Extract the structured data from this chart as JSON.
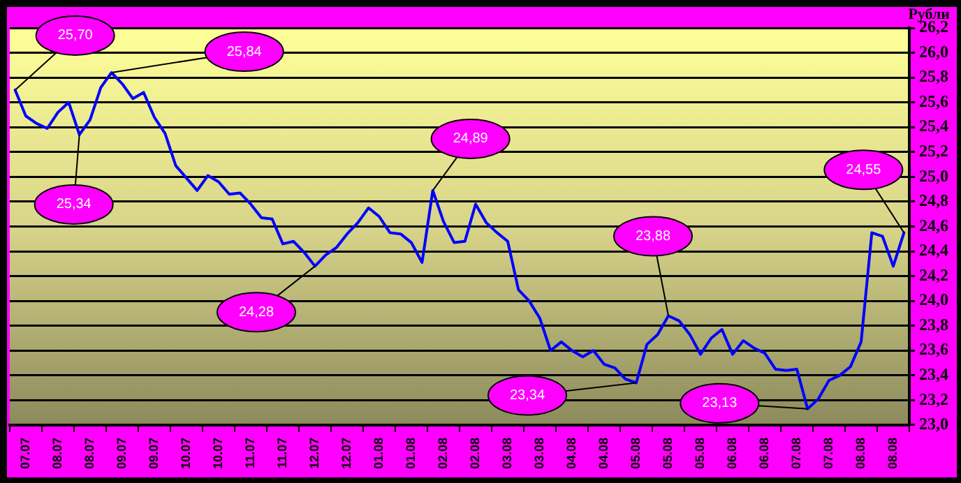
{
  "chart_data": {
    "type": "line",
    "ylabel": "Рубли",
    "grid": "y",
    "legend": false,
    "marker": "none",
    "line_style": "solid",
    "categories": [
      null,
      "07.07",
      null,
      null,
      "08.07",
      null,
      null,
      "08.07",
      null,
      null,
      "09.07",
      null,
      null,
      "09.07",
      null,
      null,
      "10.07",
      null,
      null,
      "10.07",
      null,
      null,
      "11.07",
      null,
      null,
      "11.07",
      null,
      null,
      "12.07",
      null,
      null,
      "12.07",
      null,
      null,
      "01.08",
      null,
      null,
      "01.08",
      null,
      null,
      "02.08",
      null,
      null,
      "02.08",
      null,
      null,
      "03.08",
      null,
      null,
      "03.08",
      null,
      null,
      "04.08",
      null,
      null,
      "04.08",
      null,
      null,
      "05.08",
      null,
      null,
      "05.08",
      null,
      null,
      "05.08",
      null,
      null,
      "06.08",
      null,
      null,
      "06.08",
      null,
      null,
      "07.08",
      null,
      null,
      "07.08",
      null,
      null,
      "08.08",
      null,
      null,
      "08.08",
      null
    ],
    "ylim": [
      23.0,
      26.2
    ],
    "yticks": [
      {
        "value": 23.0,
        "label": "23,0"
      },
      {
        "value": 23.2,
        "label": "23,2"
      },
      {
        "value": 23.4,
        "label": "23,4"
      },
      {
        "value": 23.6,
        "label": "23,6"
      },
      {
        "value": 23.8,
        "label": "23,8"
      },
      {
        "value": 24.0,
        "label": "24,0"
      },
      {
        "value": 24.2,
        "label": "24,2"
      },
      {
        "value": 24.4,
        "label": "24,4"
      },
      {
        "value": 24.6,
        "label": "24,6"
      },
      {
        "value": 24.8,
        "label": "24,8"
      },
      {
        "value": 25.0,
        "label": "25,0"
      },
      {
        "value": 25.2,
        "label": "25,2"
      },
      {
        "value": 25.4,
        "label": "25,4"
      },
      {
        "value": 25.6,
        "label": "25,6"
      },
      {
        "value": 25.8,
        "label": "25,8"
      },
      {
        "value": 26.0,
        "label": "26,0"
      },
      {
        "value": 26.2,
        "label": "26,2"
      }
    ],
    "series": [
      {
        "color": "#0000ff",
        "values": [
          25.7,
          25.49,
          25.43,
          25.39,
          25.52,
          25.6,
          25.34,
          25.46,
          25.72,
          25.84,
          25.75,
          25.63,
          25.68,
          25.48,
          25.35,
          25.09,
          24.99,
          24.89,
          25.01,
          24.96,
          24.86,
          24.87,
          24.78,
          24.67,
          24.66,
          24.46,
          24.48,
          24.39,
          24.28,
          24.37,
          24.43,
          24.54,
          24.63,
          24.75,
          24.68,
          24.55,
          24.54,
          24.47,
          24.31,
          24.89,
          24.64,
          24.47,
          24.48,
          24.78,
          24.63,
          24.55,
          24.48,
          24.09,
          24.0,
          23.86,
          23.6,
          23.67,
          23.6,
          23.55,
          23.6,
          23.49,
          23.46,
          23.37,
          23.34,
          23.65,
          23.73,
          23.88,
          23.84,
          23.73,
          23.57,
          23.7,
          23.77,
          23.57,
          23.68,
          23.62,
          23.58,
          23.45,
          23.44,
          23.45,
          23.13,
          23.21,
          23.36,
          23.4,
          23.47,
          23.67,
          24.55,
          24.52,
          24.28,
          24.55
        ],
        "value_labels": [
          "25,70",
          null,
          null,
          null,
          null,
          null,
          "25,34",
          null,
          null,
          "25,84",
          null,
          null,
          null,
          null,
          null,
          null,
          null,
          null,
          null,
          null,
          null,
          null,
          null,
          null,
          null,
          null,
          null,
          null,
          "24,28",
          null,
          null,
          null,
          null,
          null,
          null,
          null,
          null,
          null,
          null,
          "24,89",
          null,
          null,
          null,
          null,
          null,
          null,
          null,
          null,
          null,
          null,
          null,
          null,
          null,
          null,
          null,
          null,
          null,
          null,
          "23,34",
          null,
          null,
          "23,88",
          null,
          null,
          null,
          null,
          null,
          null,
          null,
          null,
          null,
          null,
          null,
          null,
          "23,13",
          null,
          null,
          null,
          null,
          null,
          null,
          null,
          null,
          "24,55"
        ]
      }
    ]
  }
}
